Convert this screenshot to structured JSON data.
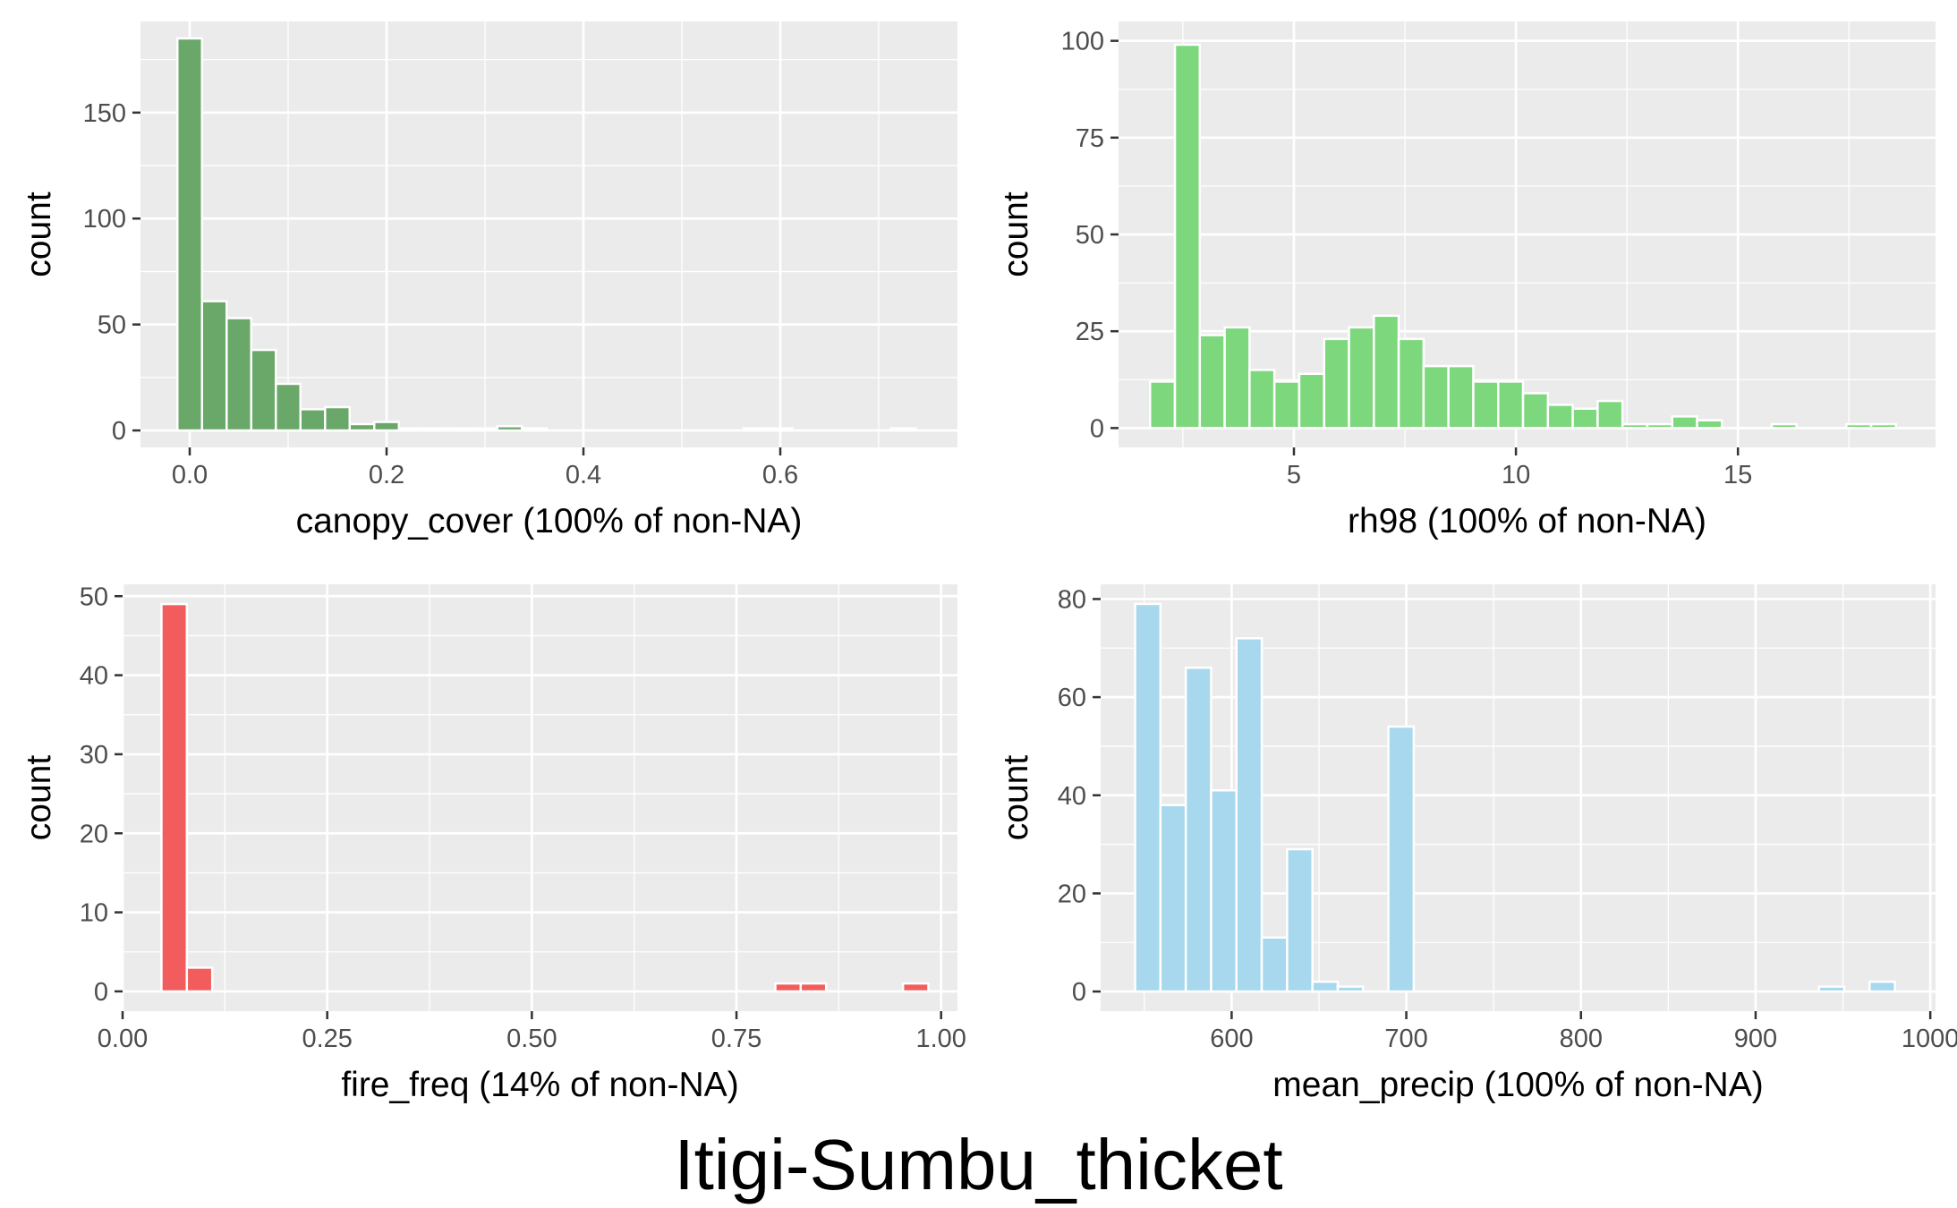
{
  "title": "Itigi-Sumbu_thicket",
  "chart_data": [
    {
      "id": "canopy",
      "type": "bar",
      "xlabel": "canopy_cover (100% of non-NA)",
      "ylabel": "count",
      "color": "#6aa86a",
      "xlim": [
        -0.05,
        0.78
      ],
      "ylim": [
        -8,
        193
      ],
      "xticks": [
        0,
        0.2,
        0.4,
        0.6
      ],
      "xtick_labels": [
        "0.0",
        "0.2",
        "0.4",
        "0.6"
      ],
      "yticks": [
        0,
        50,
        100,
        150
      ],
      "ytick_labels": [
        "0",
        "50",
        "100",
        "150"
      ],
      "bin_width": 0.025,
      "bins": [
        {
          "x": 0.0,
          "count": 185
        },
        {
          "x": 0.025,
          "count": 61
        },
        {
          "x": 0.05,
          "count": 53
        },
        {
          "x": 0.075,
          "count": 38
        },
        {
          "x": 0.1,
          "count": 22
        },
        {
          "x": 0.125,
          "count": 10
        },
        {
          "x": 0.15,
          "count": 11
        },
        {
          "x": 0.175,
          "count": 3
        },
        {
          "x": 0.2,
          "count": 4
        },
        {
          "x": 0.225,
          "count": 1
        },
        {
          "x": 0.25,
          "count": 1
        },
        {
          "x": 0.275,
          "count": 1
        },
        {
          "x": 0.3,
          "count": 1
        },
        {
          "x": 0.325,
          "count": 2
        },
        {
          "x": 0.35,
          "count": 1
        },
        {
          "x": 0.575,
          "count": 1
        },
        {
          "x": 0.6,
          "count": 1
        },
        {
          "x": 0.725,
          "count": 1
        }
      ]
    },
    {
      "id": "rh98",
      "type": "bar",
      "xlabel": "rh98 (100% of non-NA)",
      "ylabel": "count",
      "color": "#7dd87d",
      "xlim": [
        1.05,
        19.45
      ],
      "ylim": [
        -5,
        105
      ],
      "xticks": [
        5,
        10,
        15
      ],
      "xtick_labels": [
        "5",
        "10",
        "15"
      ],
      "yticks": [
        0,
        25,
        50,
        75,
        100
      ],
      "ytick_labels": [
        "0",
        "25",
        "50",
        "75",
        "100"
      ],
      "bin_width": 0.56,
      "bins": [
        {
          "x": 2.04,
          "count": 12
        },
        {
          "x": 2.6,
          "count": 99
        },
        {
          "x": 3.16,
          "count": 24
        },
        {
          "x": 3.72,
          "count": 26
        },
        {
          "x": 4.28,
          "count": 15
        },
        {
          "x": 4.84,
          "count": 12
        },
        {
          "x": 5.4,
          "count": 14
        },
        {
          "x": 5.96,
          "count": 23
        },
        {
          "x": 6.52,
          "count": 26
        },
        {
          "x": 7.08,
          "count": 29
        },
        {
          "x": 7.64,
          "count": 23
        },
        {
          "x": 8.2,
          "count": 16
        },
        {
          "x": 8.76,
          "count": 16
        },
        {
          "x": 9.32,
          "count": 12
        },
        {
          "x": 9.88,
          "count": 12
        },
        {
          "x": 10.44,
          "count": 9
        },
        {
          "x": 11.0,
          "count": 6
        },
        {
          "x": 11.56,
          "count": 5
        },
        {
          "x": 12.12,
          "count": 7
        },
        {
          "x": 12.68,
          "count": 1
        },
        {
          "x": 13.24,
          "count": 1
        },
        {
          "x": 13.8,
          "count": 3
        },
        {
          "x": 14.36,
          "count": 2
        },
        {
          "x": 16.04,
          "count": 1
        },
        {
          "x": 17.72,
          "count": 1
        },
        {
          "x": 18.28,
          "count": 1
        }
      ]
    },
    {
      "id": "fire",
      "type": "bar",
      "xlabel": "fire_freq (14% of non-NA)",
      "ylabel": "count",
      "color": "#f25c5c",
      "xlim": [
        0.0,
        1.02
      ],
      "ylim": [
        -2.5,
        51.5
      ],
      "xticks": [
        0.0,
        0.25,
        0.5,
        0.75,
        1.0
      ],
      "xtick_labels": [
        "0.00",
        "0.25",
        "0.50",
        "0.75",
        "1.00"
      ],
      "yticks": [
        0,
        10,
        20,
        30,
        40,
        50
      ],
      "ytick_labels": [
        "0",
        "10",
        "20",
        "30",
        "40",
        "50"
      ],
      "bin_width": 0.031,
      "bins": [
        {
          "x": 0.063,
          "count": 49
        },
        {
          "x": 0.094,
          "count": 3
        },
        {
          "x": 0.125,
          "count": 0
        },
        {
          "x": 0.156,
          "count": 0
        },
        {
          "x": 0.188,
          "count": 0
        },
        {
          "x": 0.219,
          "count": 0
        },
        {
          "x": 0.25,
          "count": 0
        },
        {
          "x": 0.281,
          "count": 0
        },
        {
          "x": 0.313,
          "count": 0
        },
        {
          "x": 0.344,
          "count": 0
        },
        {
          "x": 0.375,
          "count": 0
        },
        {
          "x": 0.406,
          "count": 0
        },
        {
          "x": 0.438,
          "count": 0
        },
        {
          "x": 0.469,
          "count": 0
        },
        {
          "x": 0.5,
          "count": 0
        },
        {
          "x": 0.531,
          "count": 0
        },
        {
          "x": 0.563,
          "count": 0
        },
        {
          "x": 0.594,
          "count": 0
        },
        {
          "x": 0.625,
          "count": 0
        },
        {
          "x": 0.656,
          "count": 0
        },
        {
          "x": 0.688,
          "count": 0
        },
        {
          "x": 0.719,
          "count": 0
        },
        {
          "x": 0.75,
          "count": 0
        },
        {
          "x": 0.781,
          "count": 0
        },
        {
          "x": 0.813,
          "count": 1
        },
        {
          "x": 0.844,
          "count": 1
        },
        {
          "x": 0.875,
          "count": 0
        },
        {
          "x": 0.906,
          "count": 0
        },
        {
          "x": 0.938,
          "count": 0
        },
        {
          "x": 0.969,
          "count": 1
        }
      ]
    },
    {
      "id": "precip",
      "type": "bar",
      "xlabel": "mean_precip (100% of non-NA)",
      "ylabel": "count",
      "color": "#a8d8ee",
      "xlim": [
        525,
        1003
      ],
      "ylim": [
        -4,
        83
      ],
      "xticks": [
        600,
        700,
        800,
        900,
        1000
      ],
      "xtick_labels": [
        "600",
        "700",
        "800",
        "900",
        "1000"
      ],
      "yticks": [
        0,
        20,
        40,
        60,
        80
      ],
      "ytick_labels": [
        "0",
        "20",
        "40",
        "60",
        "80"
      ],
      "bin_width": 14.5,
      "bins": [
        {
          "x": 552,
          "count": 79
        },
        {
          "x": 566.5,
          "count": 38
        },
        {
          "x": 581,
          "count": 66
        },
        {
          "x": 595.5,
          "count": 41
        },
        {
          "x": 610,
          "count": 72
        },
        {
          "x": 624.5,
          "count": 11
        },
        {
          "x": 639,
          "count": 29
        },
        {
          "x": 653.5,
          "count": 2
        },
        {
          "x": 668,
          "count": 1
        },
        {
          "x": 682.5,
          "count": 0
        },
        {
          "x": 697,
          "count": 54
        },
        {
          "x": 711.5,
          "count": 0
        },
        {
          "x": 726,
          "count": 0
        },
        {
          "x": 740.5,
          "count": 0
        },
        {
          "x": 755,
          "count": 0
        },
        {
          "x": 769.5,
          "count": 0
        },
        {
          "x": 784,
          "count": 0
        },
        {
          "x": 798.5,
          "count": 0
        },
        {
          "x": 813,
          "count": 0
        },
        {
          "x": 827.5,
          "count": 0
        },
        {
          "x": 842,
          "count": 0
        },
        {
          "x": 856.5,
          "count": 0
        },
        {
          "x": 871,
          "count": 0
        },
        {
          "x": 885.5,
          "count": 0
        },
        {
          "x": 900,
          "count": 0
        },
        {
          "x": 914.5,
          "count": 0
        },
        {
          "x": 929,
          "count": 0
        },
        {
          "x": 943.5,
          "count": 1
        },
        {
          "x": 958,
          "count": 0
        },
        {
          "x": 972.5,
          "count": 2
        }
      ]
    }
  ]
}
